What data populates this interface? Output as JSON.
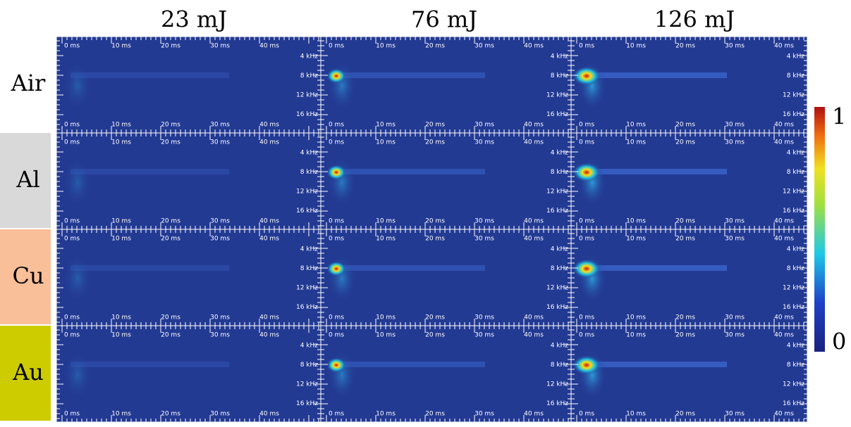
{
  "columns": [
    "23 mJ",
    "76 mJ",
    "126 mJ"
  ],
  "rows": [
    {
      "label": "Air",
      "color": "#ffffff"
    },
    {
      "label": "Al",
      "color": "#d9d9d9"
    },
    {
      "label": "Cu",
      "color": "#f9bf99"
    },
    {
      "label": "Au",
      "color": "#cccc00"
    }
  ],
  "time_ticks": [
    "0 ms",
    "10 ms",
    "20 ms",
    "30 ms",
    "40 ms"
  ],
  "freq_ticks": [
    "4 kHz",
    "8 kHz",
    "12 kHz",
    "16 kHz"
  ],
  "colorbar": {
    "ticks": [
      1,
      0
    ]
  }
}
